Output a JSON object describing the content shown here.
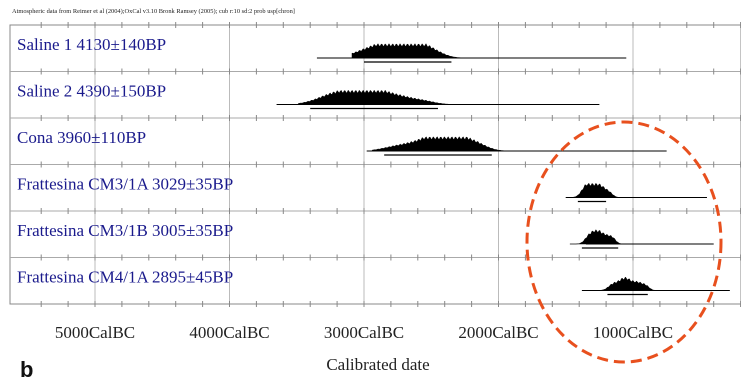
{
  "chart_data": {
    "type": "oxcal-multiplot",
    "header": "Atmospheric data from Reimer et al (2004);OxCal v3.10 Bronk Ramsey (2005); cub r:10 sd:2 prob usp[chron]",
    "panel_label": "b",
    "xlabel": "Calibrated date",
    "x_unit": "Cal BC (older to the left)",
    "xlim": [
      5600,
      0
    ],
    "x_tick_labels": [
      {
        "value": 5000,
        "label": "5000CalBC"
      },
      {
        "value": 4000,
        "label": "4000CalBC"
      },
      {
        "value": 3000,
        "label": "3000CalBC"
      },
      {
        "value": 2000,
        "label": "2000CalBC"
      },
      {
        "value": 1000,
        "label": "1000CalBC"
      }
    ],
    "grid": true,
    "label_color": "#1a1a8c",
    "highlight_color": "#e8501e",
    "highlight": {
      "shape": "dashed ellipse",
      "covers": [
        "Frattesina CM3/1A",
        "Frattesina CM3/1B",
        "Frattesina CM4/1A"
      ]
    },
    "samples": [
      {
        "label": "Saline 1  4130±140BP",
        "bar_calbc": [
          3350,
          1050
        ],
        "range_calbc": [
          3000,
          2350
        ],
        "peaks": [
          {
            "c": 2950,
            "w": 130,
            "h": 0.6
          },
          {
            "c": 2760,
            "w": 130,
            "h": 1.0
          },
          {
            "c": 2620,
            "w": 110,
            "h": 0.85
          },
          {
            "c": 2480,
            "w": 80,
            "h": 0.3
          }
        ]
      },
      {
        "label": "Saline 2  4390±150BP",
        "bar_calbc": [
          3650,
          1250
        ],
        "range_calbc": [
          3400,
          2450
        ],
        "peaks": [
          {
            "c": 3250,
            "w": 120,
            "h": 0.6
          },
          {
            "c": 3050,
            "w": 130,
            "h": 1.0
          },
          {
            "c": 2880,
            "w": 110,
            "h": 0.7
          },
          {
            "c": 2700,
            "w": 100,
            "h": 0.45
          },
          {
            "c": 2540,
            "w": 80,
            "h": 0.2
          }
        ]
      },
      {
        "label": "Cona  3960±110BP",
        "bar_calbc": [
          2980,
          750
        ],
        "range_calbc": [
          2850,
          2050
        ],
        "peaks": [
          {
            "c": 2750,
            "w": 110,
            "h": 0.35
          },
          {
            "c": 2560,
            "w": 110,
            "h": 0.6
          },
          {
            "c": 2420,
            "w": 100,
            "h": 1.0
          },
          {
            "c": 2280,
            "w": 100,
            "h": 0.8
          },
          {
            "c": 2150,
            "w": 80,
            "h": 0.35
          }
        ]
      },
      {
        "label": "Frattesina CM3/1A  3029±35BP",
        "bar_calbc": [
          1500,
          450
        ],
        "range_calbc": [
          1410,
          1200
        ],
        "peaks": [
          {
            "c": 1350,
            "w": 35,
            "h": 0.85
          },
          {
            "c": 1290,
            "w": 35,
            "h": 1.0
          },
          {
            "c": 1225,
            "w": 35,
            "h": 0.7
          },
          {
            "c": 1170,
            "w": 25,
            "h": 0.25
          }
        ]
      },
      {
        "label": "Frattesina CM3/1B  3005±35BP",
        "bar_calbc": [
          1350,
          400
        ],
        "range_calbc": [
          1380,
          1110
        ],
        "peaks": [
          {
            "c": 1330,
            "w": 30,
            "h": 0.55
          },
          {
            "c": 1270,
            "w": 35,
            "h": 1.0
          },
          {
            "c": 1200,
            "w": 35,
            "h": 0.6
          },
          {
            "c": 1150,
            "w": 25,
            "h": 0.35
          }
        ]
      },
      {
        "label": "Frattesina CM4/1A  2895±45BP",
        "bar_calbc": [
          1380,
          280
        ],
        "range_calbc": [
          1190,
          890
        ],
        "peaks": [
          {
            "c": 1150,
            "w": 35,
            "h": 0.45
          },
          {
            "c": 1060,
            "w": 45,
            "h": 1.0
          },
          {
            "c": 960,
            "w": 40,
            "h": 0.6
          },
          {
            "c": 900,
            "w": 25,
            "h": 0.25
          }
        ]
      }
    ]
  }
}
